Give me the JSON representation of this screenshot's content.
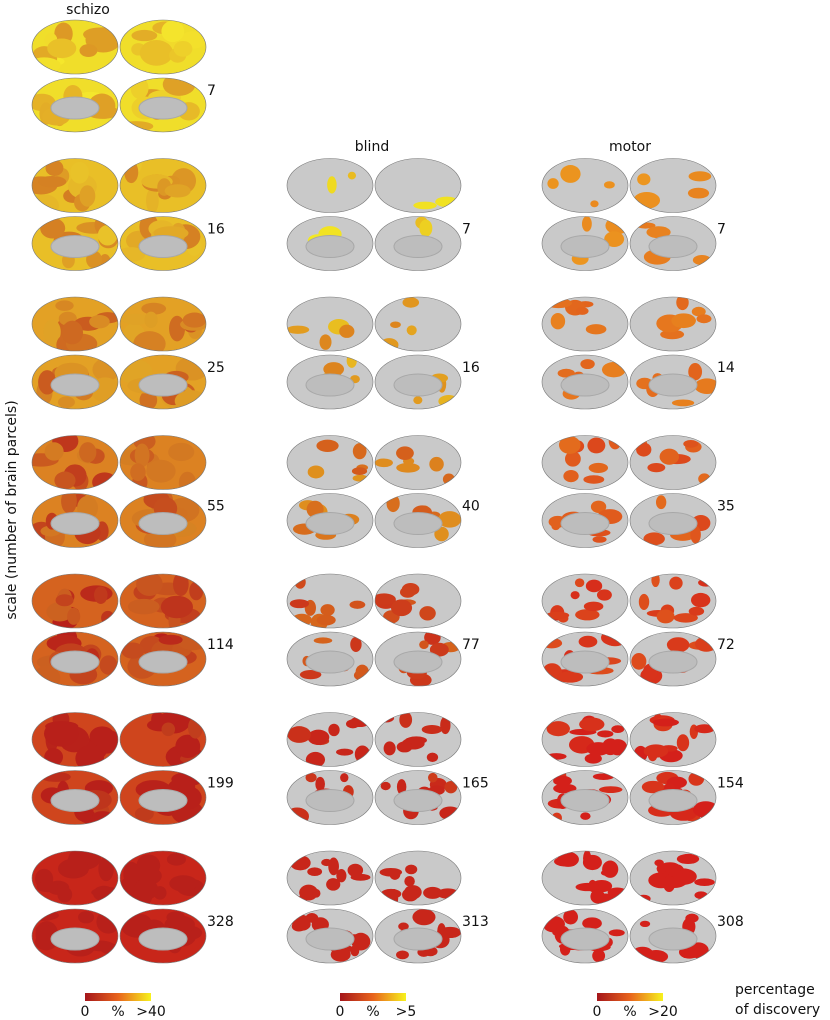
{
  "figure": {
    "y_label": "scale (number of brain parcels)",
    "legend_label": [
      "percentage",
      "of discovery"
    ],
    "columns": [
      {
        "title": "schizo",
        "scales": [
          7,
          16,
          25,
          55,
          114,
          199,
          328
        ],
        "colorbar": {
          "min": "0",
          "unit": "%",
          "max": ">40"
        }
      },
      {
        "title": "blind",
        "scales": [
          7,
          16,
          40,
          77,
          165,
          313
        ],
        "colorbar": {
          "min": "0",
          "unit": "%",
          "max": ">5"
        }
      },
      {
        "title": "motor",
        "scales": [
          7,
          14,
          35,
          72,
          154,
          308
        ],
        "colorbar": {
          "min": "0",
          "unit": "%",
          "max": ">20"
        }
      }
    ]
  }
}
